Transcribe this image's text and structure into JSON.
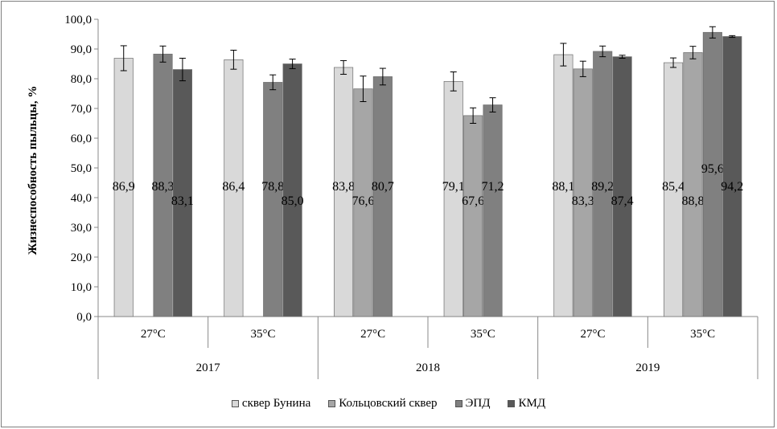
{
  "chart_data": {
    "type": "bar",
    "ylabel": "Жизнеспособность пыльцы, %",
    "ylim": [
      0,
      100
    ],
    "yticks": [
      "0,0",
      "10,0",
      "20,0",
      "30,0",
      "40,0",
      "50,0",
      "60,0",
      "70,0",
      "80,0",
      "90,0",
      "100,0"
    ],
    "grid": false,
    "legend_position": "bottom",
    "groups": [
      {
        "year": "2017",
        "temps": [
          "27°C",
          "35°C"
        ]
      },
      {
        "year": "2018",
        "temps": [
          "27°C",
          "35°C"
        ]
      },
      {
        "year": "2019",
        "temps": [
          "27°C",
          "35°C"
        ]
      }
    ],
    "categories": [
      "2017 27°C",
      "2017 35°C",
      "2018 27°C",
      "2018 35°C",
      "2019 27°C",
      "2019 35°C"
    ],
    "series": [
      {
        "name": "сквер Бунина",
        "color": "#d9d9d9",
        "values": [
          86.9,
          86.4,
          83.8,
          79.1,
          88.1,
          85.4
        ],
        "errors": [
          4.2,
          3.2,
          2.3,
          3.2,
          3.8,
          1.6
        ],
        "labels": [
          "86,9",
          "86,4",
          "83,8",
          "79,1",
          "88,1",
          "85,4"
        ]
      },
      {
        "name": "Кольцовский сквер",
        "color": "#a6a6a6",
        "values": [
          null,
          null,
          76.6,
          67.6,
          83.3,
          88.8
        ],
        "errors": [
          null,
          null,
          4.3,
          2.6,
          2.6,
          2.1
        ],
        "labels": [
          "",
          "",
          "76,6",
          "67,6",
          "83,3",
          "88,8"
        ]
      },
      {
        "name": "ЭПД",
        "color": "#808080",
        "values": [
          88.3,
          78.8,
          80.7,
          71.2,
          89.2,
          95.6
        ],
        "errors": [
          2.7,
          2.5,
          2.8,
          2.4,
          1.8,
          1.9
        ],
        "labels": [
          "88,3",
          "78,8",
          "80,7",
          "71,2",
          "89,2",
          "95,6"
        ]
      },
      {
        "name": "КМД",
        "color": "#595959",
        "values": [
          83.1,
          85.0,
          null,
          null,
          87.4,
          94.2
        ],
        "errors": [
          3.8,
          1.6,
          null,
          null,
          0.5,
          0.3
        ],
        "labels": [
          "83,1",
          "85,0",
          "",
          "",
          "87,4",
          "94,2"
        ]
      }
    ]
  }
}
